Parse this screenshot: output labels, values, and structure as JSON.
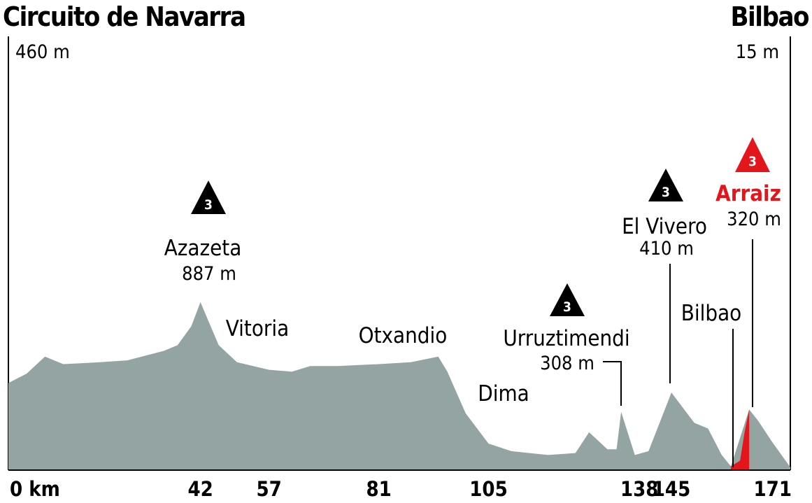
{
  "chart_data": {
    "type": "area",
    "start_location": "Circuito de Navarra",
    "end_location": "Bilbao",
    "start_elevation": "460 m",
    "end_elevation": "15 m",
    "x_ticks": [
      {
        "km": 0,
        "label": "0 km"
      },
      {
        "km": 42,
        "label": "42"
      },
      {
        "km": 57,
        "label": "57"
      },
      {
        "km": 81,
        "label": "81"
      },
      {
        "km": 105,
        "label": "105"
      },
      {
        "km": 138,
        "label": "138"
      },
      {
        "km": 145,
        "label": "145"
      },
      {
        "km": 171,
        "label": "171"
      }
    ],
    "climbs": [
      {
        "name": "Azazeta",
        "elevation": "887 m",
        "category": "3",
        "km": 42
      },
      {
        "name": "Urruztimendi",
        "elevation": "308 m",
        "category": "3",
        "km": 134
      },
      {
        "name": "El Vivero",
        "elevation": "410 m",
        "category": "3",
        "km": 145
      },
      {
        "name": "Arraiz",
        "elevation": "320 m",
        "category": "3",
        "km": 162
      }
    ],
    "places": [
      {
        "name": "Vitoria",
        "km": 50
      },
      {
        "name": "Otxandio",
        "km": 81
      },
      {
        "name": "Dima",
        "km": 104
      },
      {
        "name": "Bilbao",
        "km": 159
      }
    ],
    "profile_elevation": [
      {
        "km": 0,
        "m": 460
      },
      {
        "km": 4,
        "m": 510
      },
      {
        "km": 8,
        "m": 600
      },
      {
        "km": 12,
        "m": 560
      },
      {
        "km": 20,
        "m": 570
      },
      {
        "km": 26,
        "m": 580
      },
      {
        "km": 34,
        "m": 630
      },
      {
        "km": 37,
        "m": 660
      },
      {
        "km": 40,
        "m": 760
      },
      {
        "km": 42,
        "m": 887
      },
      {
        "km": 46,
        "m": 660
      },
      {
        "km": 50,
        "m": 570
      },
      {
        "km": 57,
        "m": 530
      },
      {
        "km": 62,
        "m": 520
      },
      {
        "km": 66,
        "m": 550
      },
      {
        "km": 72,
        "m": 550
      },
      {
        "km": 81,
        "m": 560
      },
      {
        "km": 88,
        "m": 570
      },
      {
        "km": 94,
        "m": 600
      },
      {
        "km": 96,
        "m": 520
      },
      {
        "km": 100,
        "m": 300
      },
      {
        "km": 105,
        "m": 140
      },
      {
        "km": 110,
        "m": 100
      },
      {
        "km": 118,
        "m": 80
      },
      {
        "km": 124,
        "m": 90
      },
      {
        "km": 127,
        "m": 200
      },
      {
        "km": 131,
        "m": 110
      },
      {
        "km": 133,
        "m": 110
      },
      {
        "km": 134,
        "m": 308
      },
      {
        "km": 137,
        "m": 80
      },
      {
        "km": 140,
        "m": 100
      },
      {
        "km": 145,
        "m": 410
      },
      {
        "km": 150,
        "m": 250
      },
      {
        "km": 153,
        "m": 220
      },
      {
        "km": 156,
        "m": 80
      },
      {
        "km": 158,
        "m": 20
      },
      {
        "km": 162,
        "m": 320
      },
      {
        "km": 164,
        "m": 260
      },
      {
        "km": 167,
        "m": 150
      },
      {
        "km": 171,
        "m": 15
      }
    ],
    "final_climb_elevation": [
      {
        "km": 158,
        "m": 20
      },
      {
        "km": 160,
        "m": 50
      },
      {
        "km": 161,
        "m": 200
      },
      {
        "km": 162,
        "m": 320
      },
      {
        "km": 162,
        "m": 15
      }
    ],
    "colors": {
      "profile": "#93a4a3",
      "final_climb": "#e3171b",
      "axis": "#000000",
      "marker": "#000000"
    }
  }
}
